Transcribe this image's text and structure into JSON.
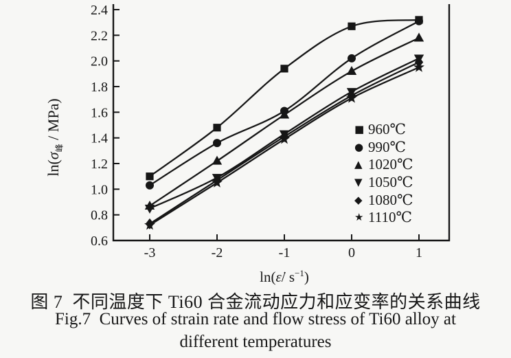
{
  "figure": {
    "background": "#f7f7f5",
    "ink": "#161616"
  },
  "chart_data": {
    "type": "line",
    "x": [
      -3,
      -2,
      -1,
      0,
      1
    ],
    "xticks": [
      {
        "v": -3,
        "label": "-3"
      },
      {
        "v": -2,
        "label": "-2"
      },
      {
        "v": -1,
        "label": "-1"
      },
      {
        "v": 0,
        "label": "0"
      },
      {
        "v": 1,
        "label": "1"
      }
    ],
    "yticks": [
      {
        "v": 0.6,
        "label": "0.6"
      },
      {
        "v": 0.8,
        "label": "0.8"
      },
      {
        "v": 1.0,
        "label": "1.0"
      },
      {
        "v": 1.2,
        "label": "1.2"
      },
      {
        "v": 1.4,
        "label": "1.4"
      },
      {
        "v": 1.6,
        "label": "1.6"
      },
      {
        "v": 1.8,
        "label": "1.8"
      },
      {
        "v": 2.0,
        "label": "2.0"
      },
      {
        "v": 2.2,
        "label": "2.2"
      },
      {
        "v": 2.4,
        "label": "2.4"
      }
    ],
    "xlim": [
      -3.55,
      1.45
    ],
    "ylim": [
      0.6,
      2.45
    ],
    "grid": false,
    "legend_position": "inside-right",
    "xlabel_parts": {
      "prefix": "ln(",
      "symbol": "ε̇",
      "mid": "/ s",
      "sup": "−1",
      "suffix": ")"
    },
    "ylabel_parts": {
      "prefix": "ln(",
      "symbol": "σ",
      "sub": "峰",
      "suffix": " / MPa)"
    },
    "series": [
      {
        "name": "960℃",
        "marker": "square",
        "glyph": "■",
        "color": "#161616",
        "values": [
          1.1,
          1.48,
          1.94,
          2.27,
          2.32
        ]
      },
      {
        "name": "990℃",
        "marker": "circle",
        "glyph": "●",
        "color": "#161616",
        "values": [
          1.03,
          1.36,
          1.61,
          2.02,
          2.31
        ]
      },
      {
        "name": "1020℃",
        "marker": "triangle-up",
        "glyph": "▲",
        "color": "#161616",
        "values": [
          0.87,
          1.22,
          1.58,
          1.92,
          2.18
        ]
      },
      {
        "name": "1050℃",
        "marker": "triangle-down",
        "glyph": "▼",
        "color": "#161616",
        "values": [
          0.85,
          1.09,
          1.43,
          1.76,
          2.02
        ]
      },
      {
        "name": "1080℃",
        "marker": "diamond",
        "glyph": "◆",
        "color": "#161616",
        "values": [
          0.73,
          1.07,
          1.41,
          1.73,
          1.99
        ]
      },
      {
        "name": "1110℃",
        "marker": "star",
        "glyph": "★",
        "color": "#161616",
        "values": [
          0.72,
          1.05,
          1.39,
          1.71,
          1.95
        ]
      }
    ]
  },
  "caption": {
    "zh": "图 7  不同温度下 Ti60 合金流动应力和应变率的关系曲线",
    "en_line1": "Fig.7  Curves of strain rate and flow stress of Ti60 alloy at",
    "en_line2": "different temperatures"
  }
}
